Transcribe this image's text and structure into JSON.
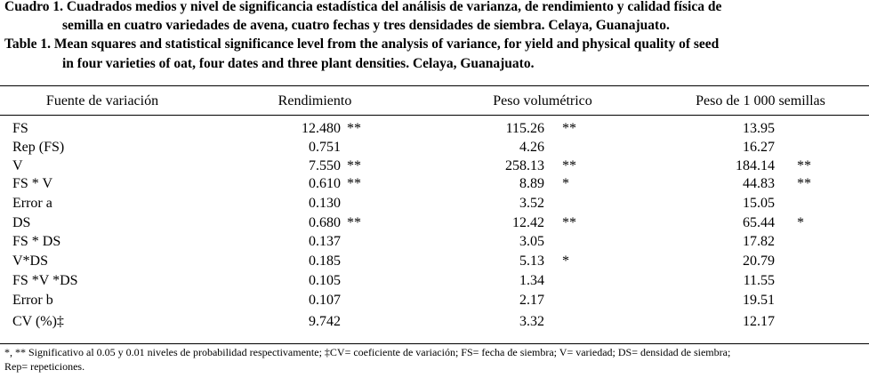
{
  "header": {
    "caption_es": [
      "Cuadro 1. Cuadrados medios y nivel de significancia estadística del análisis de varianza, de rendimiento y calidad física de",
      "semilla en cuatro variedades de avena, cuatro fechas y tres densidades de siembra. Celaya, Guanajuato."
    ],
    "caption_en": [
      "Table 1. Mean squares and statistical significance level from the analysis of variance, for yield and physical quality of seed",
      "in four varieties of oat, four dates and three plant densities. Celaya, Guanajuato."
    ]
  },
  "table": {
    "columns": [
      "Fuente de variación",
      "Rendimiento",
      "Peso volumétrico",
      "Peso de 1 000 semillas"
    ],
    "rows": [
      [
        "FS",
        "12.480",
        "**",
        "115.26",
        "**",
        "13.95",
        null
      ],
      [
        "Rep (FS)",
        "0.751",
        null,
        "4.26",
        null,
        "16.27",
        null
      ],
      [
        "V",
        "7.550",
        "**",
        "258.13",
        "**",
        "184.14",
        "**"
      ],
      [
        "FS * V",
        "0.610",
        "**",
        "8.89",
        "*",
        "44.83",
        "**"
      ],
      [
        "Error a",
        "0.130",
        null,
        "3.52",
        null,
        "15.05",
        null
      ],
      [
        "DS",
        "0.680",
        "**",
        "12.42",
        "**",
        "65.44",
        "*"
      ],
      [
        "FS * DS",
        "0.137",
        null,
        "3.05",
        null,
        "17.82",
        null
      ],
      [
        "V*DS",
        "0.185",
        null,
        "5.13",
        "*",
        "20.79",
        null
      ],
      [
        "FS *V *DS",
        "0.105",
        null,
        "1.34",
        null,
        "11.55",
        null
      ],
      [
        "Error b",
        "0.107",
        null,
        "2.17",
        null,
        "19.51",
        null
      ],
      [
        "CV (%)‡",
        "9.742",
        null,
        "3.32",
        null,
        "12.17",
        null
      ]
    ]
  },
  "footnote": [
    "*, ** Significativo al 0.05 y 0.01 niveles de probabilidad respectivamente; ‡CV= coeficiente de variación; FS= fecha de siembra; V= variedad; DS= densidad de siembra;",
    "Rep= repeticiones."
  ]
}
